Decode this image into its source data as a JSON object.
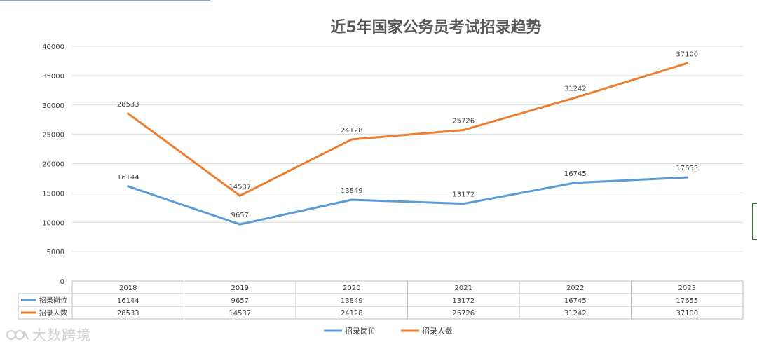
{
  "chart_data": {
    "type": "line",
    "title": "近5年国家公务员考试招录趋势",
    "categories": [
      "2018",
      "2019",
      "2020",
      "2021",
      "2022",
      "2023"
    ],
    "series": [
      {
        "name": "招录岗位",
        "color": "#5b9bd5",
        "values": [
          16144,
          9657,
          13849,
          13172,
          16745,
          17655
        ]
      },
      {
        "name": "招录人数",
        "color": "#ed7d31",
        "values": [
          28533,
          14537,
          24128,
          25726,
          31242,
          37100
        ]
      }
    ],
    "ylim": [
      0,
      40000
    ],
    "yticks": [
      "0",
      "5000",
      "10000",
      "15000",
      "20000",
      "25000",
      "30000",
      "35000",
      "40000"
    ],
    "grid": true,
    "legend": "bottom",
    "data_table": true
  },
  "watermark": {
    "text": "大数跨境",
    "icon": "watermark-logo-icon"
  }
}
